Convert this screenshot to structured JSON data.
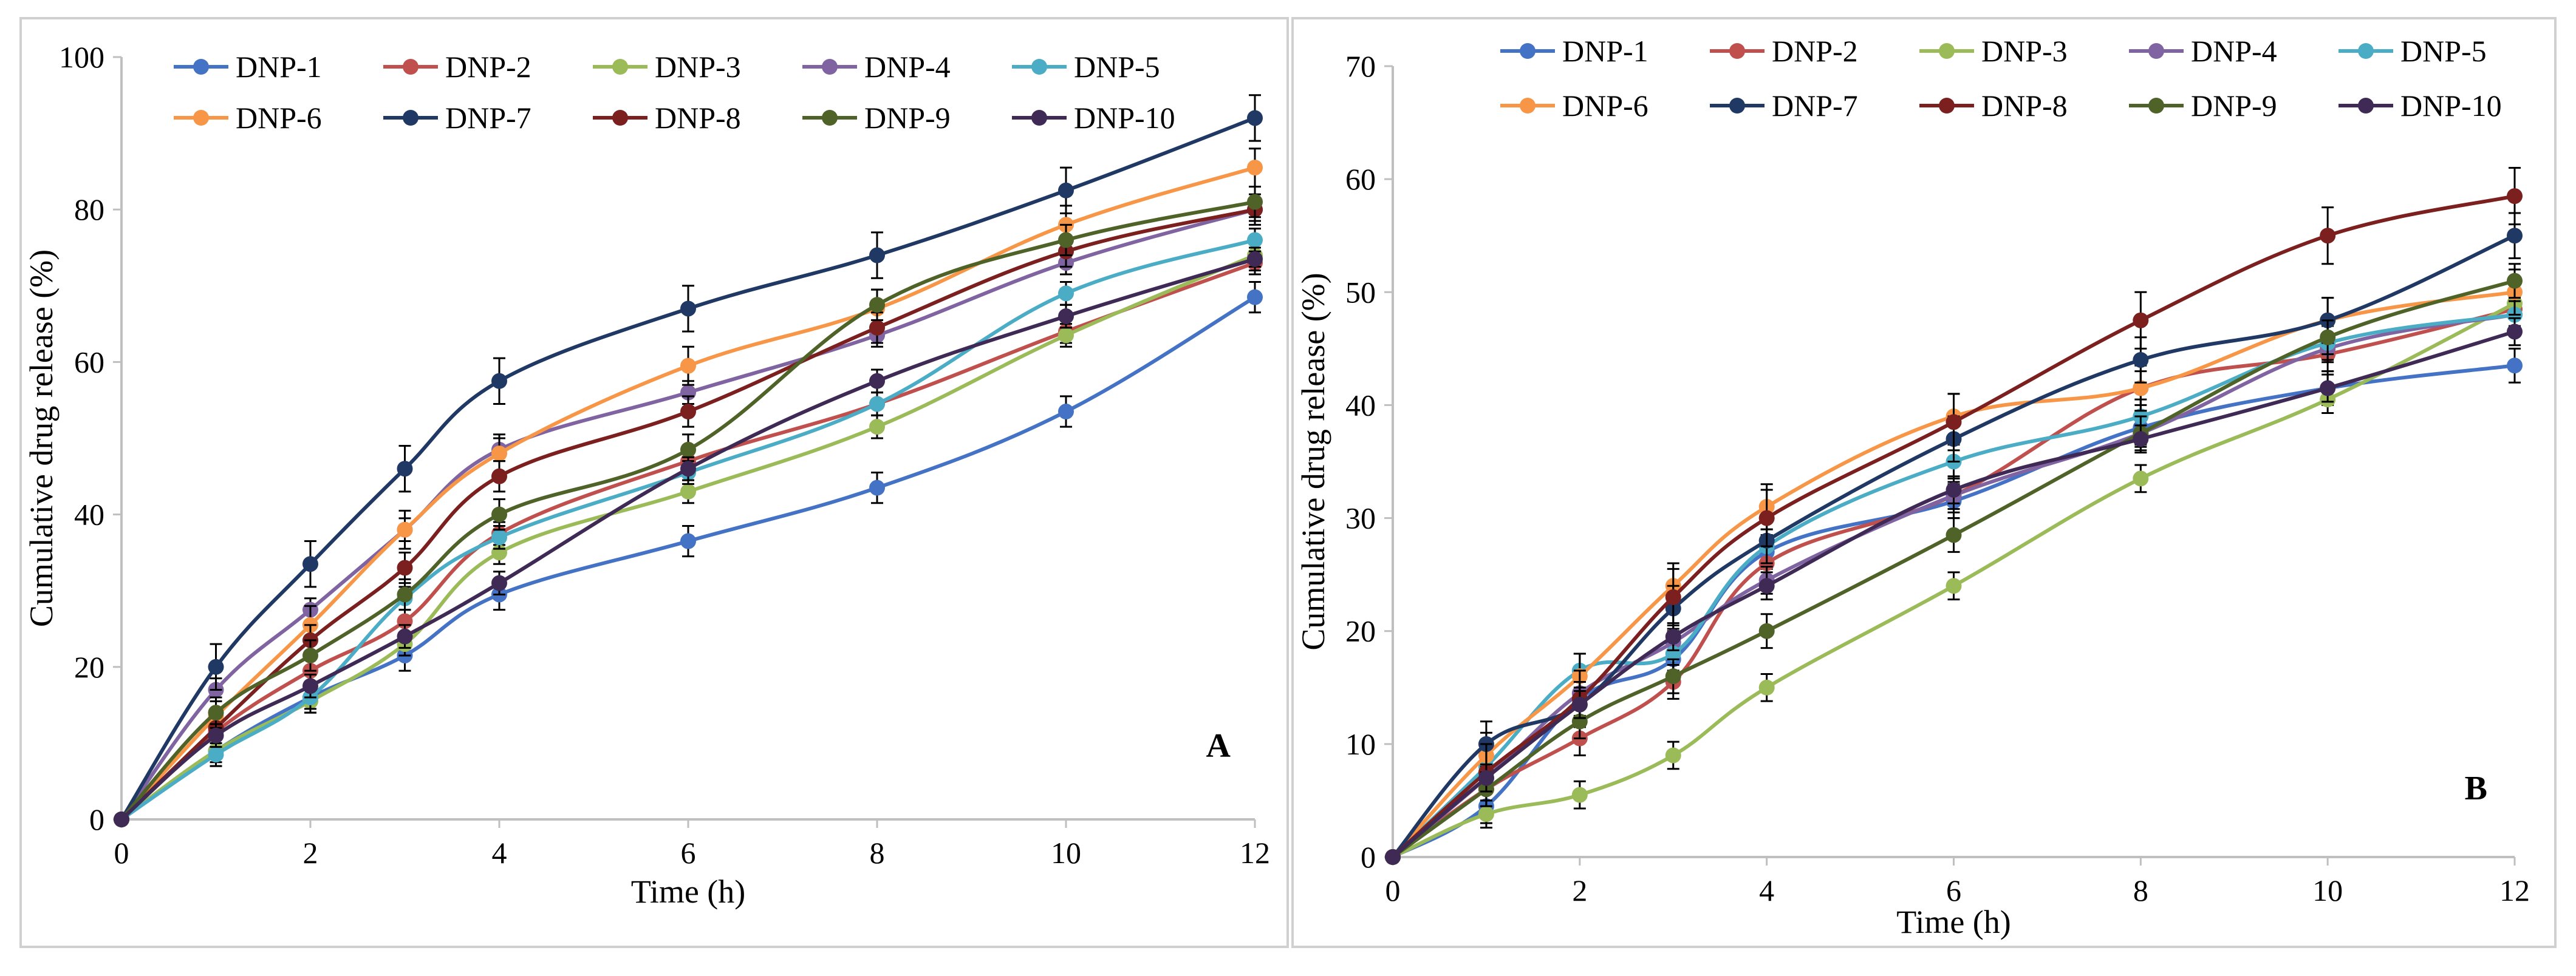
{
  "series_names": [
    "DNP-1",
    "DNP-2",
    "DNP-3",
    "DNP-4",
    "DNP-5",
    "DNP-6",
    "DNP-7",
    "DNP-8",
    "DNP-9",
    "DNP-10"
  ],
  "series_colors": [
    "#4472C4",
    "#C0504D",
    "#9BBB59",
    "#8064A2",
    "#4BACC6",
    "#F79646",
    "#1F3864",
    "#7B1F1F",
    "#4F6228",
    "#3F2A56"
  ],
  "chart_data": [
    {
      "type": "line",
      "panel_label": "A",
      "xlabel": "Time (h)",
      "ylabel": "Cumulative drug release (%)",
      "x": [
        0,
        1,
        2,
        3,
        4,
        6,
        8,
        10,
        12
      ],
      "xlim": [
        0,
        12
      ],
      "ylim": [
        0,
        100
      ],
      "xticks": [
        0,
        2,
        4,
        6,
        8,
        10,
        12
      ],
      "yticks": [
        0,
        20,
        40,
        60,
        80,
        100
      ],
      "legend_position": "top",
      "grid": false,
      "series": [
        {
          "name": "DNP-1",
          "values": [
            0,
            9,
            16,
            21.5,
            29.5,
            36.5,
            43.5,
            53.5,
            68.5
          ]
        },
        {
          "name": "DNP-2",
          "values": [
            0,
            11.5,
            19.5,
            26,
            37.5,
            47,
            54.5,
            64,
            73
          ]
        },
        {
          "name": "DNP-3",
          "values": [
            0,
            9,
            15.5,
            23,
            35,
            43,
            51.5,
            63.5,
            74
          ]
        },
        {
          "name": "DNP-4",
          "values": [
            0,
            17,
            27.5,
            38,
            48.5,
            56,
            63.5,
            73,
            80
          ]
        },
        {
          "name": "DNP-5",
          "values": [
            0,
            8.5,
            16,
            29,
            37,
            45.5,
            54.5,
            69,
            76
          ]
        },
        {
          "name": "DNP-6",
          "values": [
            0,
            13.5,
            25.5,
            38,
            48,
            59.5,
            67,
            78,
            85.5
          ]
        },
        {
          "name": "DNP-7",
          "values": [
            0,
            20,
            33.5,
            46,
            57.5,
            67,
            74,
            82.5,
            92
          ]
        },
        {
          "name": "DNP-8",
          "values": [
            0,
            12,
            23.5,
            33,
            45,
            53.5,
            64.5,
            74.5,
            80
          ]
        },
        {
          "name": "DNP-9",
          "values": [
            0,
            14,
            21.5,
            29.5,
            40,
            48.5,
            67.5,
            76,
            81
          ]
        },
        {
          "name": "DNP-10",
          "values": [
            0,
            11,
            17.5,
            24,
            31,
            46,
            57.5,
            66,
            73.5
          ]
        }
      ],
      "error_bars": {
        "DNP-1": 2,
        "DNP-2": 1.5,
        "DNP-3": 1.5,
        "DNP-4": 1.5,
        "DNP-5": 1.5,
        "DNP-6": 2.5,
        "DNP-7": 3,
        "DNP-8": 2,
        "DNP-9": 2,
        "DNP-10": 1.5
      }
    },
    {
      "type": "line",
      "panel_label": "B",
      "xlabel": "Time (h)",
      "ylabel": "Cumulative drug release (%)",
      "x": [
        0,
        1,
        2,
        3,
        4,
        6,
        8,
        10,
        12
      ],
      "xlim": [
        0,
        12
      ],
      "ylim": [
        0,
        70
      ],
      "xticks": [
        0,
        2,
        4,
        6,
        8,
        10,
        12
      ],
      "yticks": [
        0,
        10,
        20,
        30,
        40,
        50,
        60,
        70
      ],
      "legend_position": "top",
      "grid": false,
      "series": [
        {
          "name": "DNP-1",
          "values": [
            0,
            4.5,
            14,
            17.5,
            27,
            31.5,
            38,
            41.5,
            43.5
          ]
        },
        {
          "name": "DNP-2",
          "values": [
            0,
            6,
            10.5,
            15.5,
            26,
            32,
            41.5,
            44.5,
            48.5
          ]
        },
        {
          "name": "DNP-3",
          "values": [
            0,
            3.8,
            5.5,
            9,
            15,
            24,
            33.5,
            40.5,
            49
          ]
        },
        {
          "name": "DNP-4",
          "values": [
            0,
            7,
            14.5,
            19,
            24.5,
            32,
            37.5,
            45,
            48
          ]
        },
        {
          "name": "DNP-5",
          "values": [
            0,
            8,
            16.5,
            18,
            27.5,
            35,
            39,
            45.5,
            48
          ]
        },
        {
          "name": "DNP-6",
          "values": [
            0,
            9,
            16,
            24,
            31,
            39,
            41.5,
            47.5,
            50
          ]
        },
        {
          "name": "DNP-7",
          "values": [
            0,
            10,
            13.5,
            22,
            28,
            37,
            44,
            47.5,
            55
          ]
        },
        {
          "name": "DNP-8",
          "values": [
            0,
            7.5,
            14,
            23,
            30,
            38.5,
            47.5,
            55,
            58.5
          ]
        },
        {
          "name": "DNP-9",
          "values": [
            0,
            6,
            12,
            16,
            20,
            28.5,
            37.5,
            46,
            51
          ]
        },
        {
          "name": "DNP-10",
          "values": [
            0,
            7,
            13.5,
            19.5,
            24,
            32.5,
            37,
            41.5,
            46.5
          ]
        }
      ],
      "error_bars": {
        "DNP-1": 1.5,
        "DNP-2": 1.5,
        "DNP-3": 1.2,
        "DNP-4": 1.2,
        "DNP-5": 1.5,
        "DNP-6": 2,
        "DNP-7": 2,
        "DNP-8": 2.5,
        "DNP-9": 1.5,
        "DNP-10": 1.2
      }
    }
  ]
}
